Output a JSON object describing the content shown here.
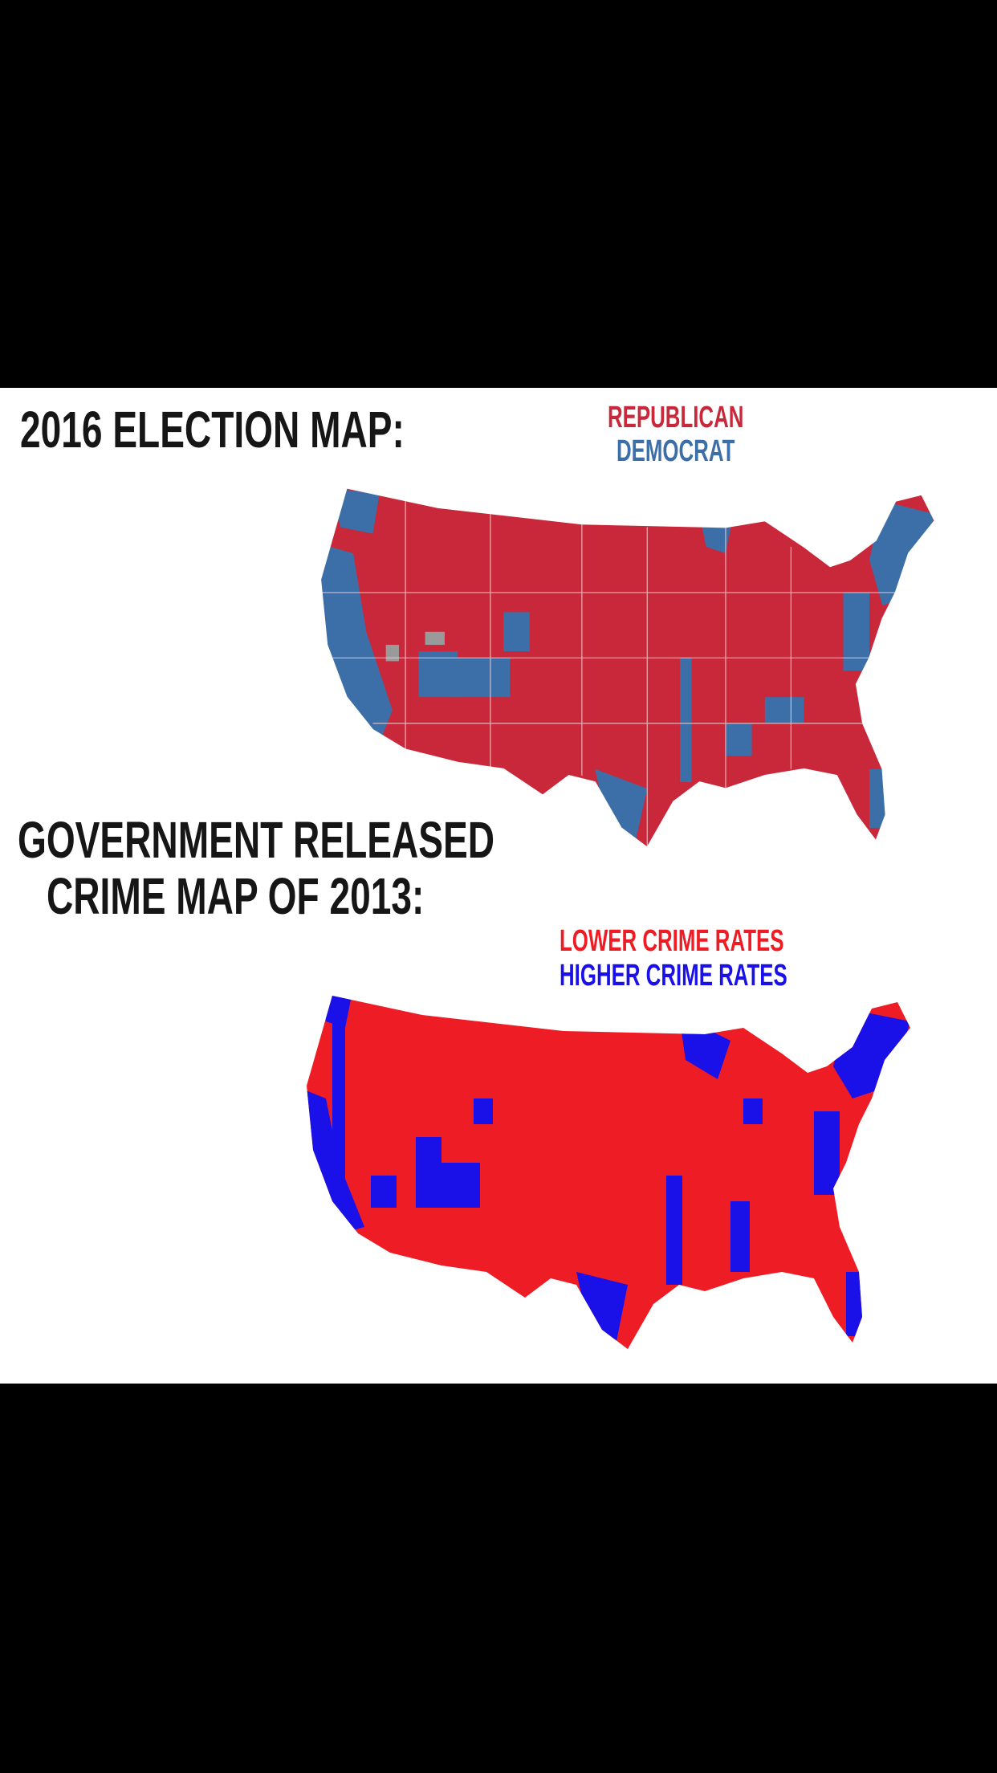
{
  "election": {
    "title": "2016 ELECTION MAP:",
    "legend": [
      {
        "label": "REPUBLICAN",
        "color": "#c8283a"
      },
      {
        "label": "DEMOCRAT",
        "color": "#3c6fa8"
      }
    ]
  },
  "crime": {
    "title_line1": "GOVERNMENT RELEASED",
    "title_line2": "CRIME MAP OF 2013:",
    "legend": [
      {
        "label": "LOWER CRIME RATES",
        "color": "#ee1c24"
      },
      {
        "label": "HIGHER CRIME RATES",
        "color": "#1a10e8"
      }
    ]
  }
}
